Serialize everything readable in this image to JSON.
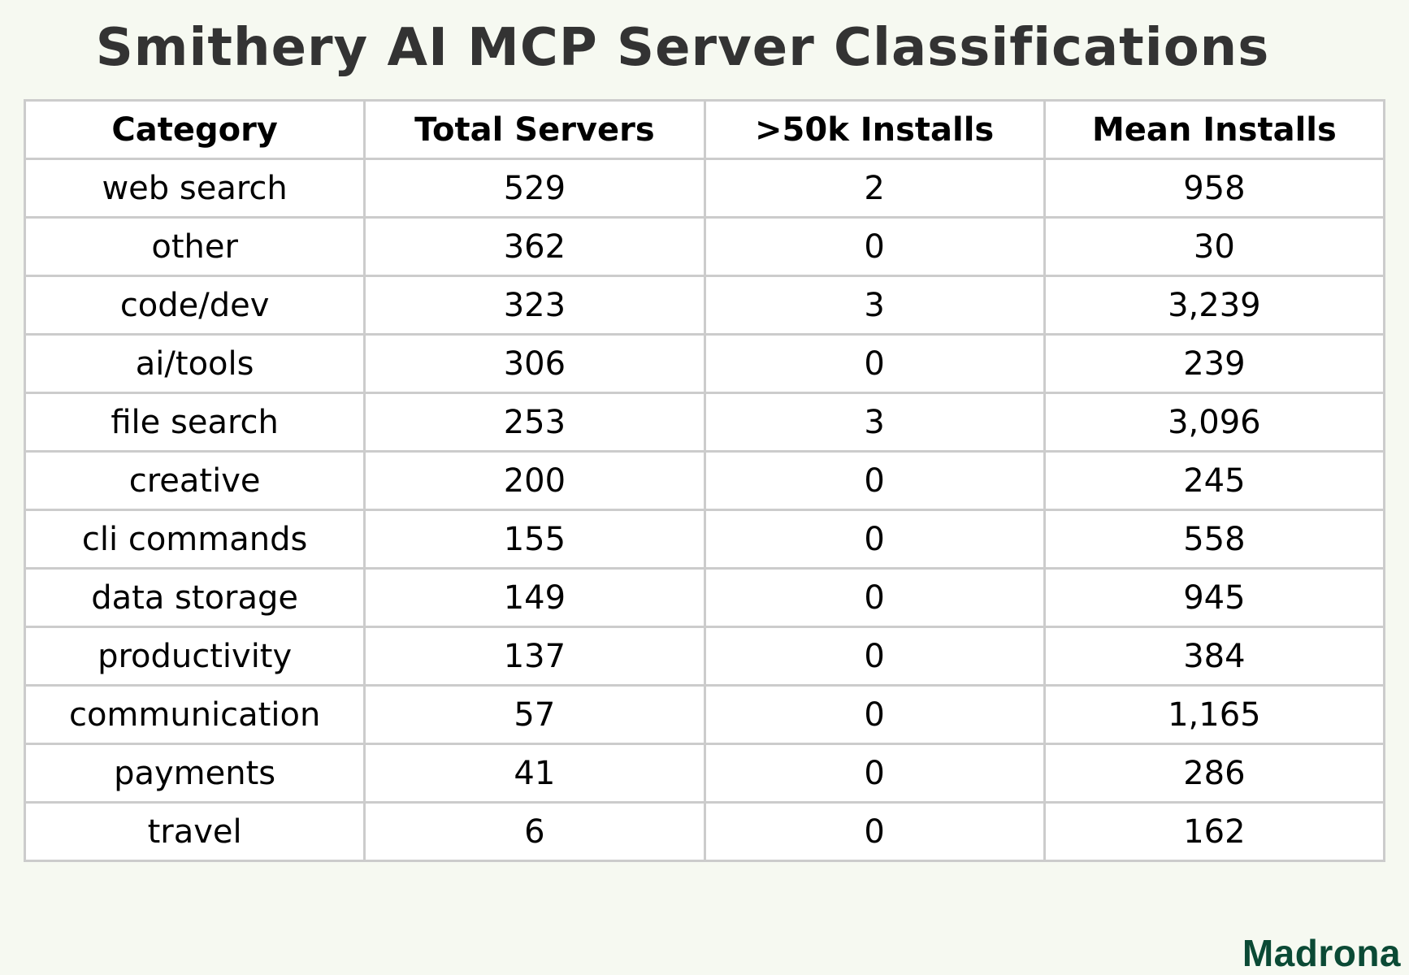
{
  "title": "Smithery AI MCP Server Classifications",
  "table": {
    "headers": [
      "Category",
      "Total Servers",
      ">50k Installs",
      "Mean Installs"
    ],
    "rows": [
      [
        "web search",
        "529",
        "2",
        "958"
      ],
      [
        "other",
        "362",
        "0",
        "30"
      ],
      [
        "code/dev",
        "323",
        "3",
        "3,239"
      ],
      [
        "ai/tools",
        "306",
        "0",
        "239"
      ],
      [
        "file search",
        "253",
        "3",
        "3,096"
      ],
      [
        "creative",
        "200",
        "0",
        "245"
      ],
      [
        "cli commands",
        "155",
        "0",
        "558"
      ],
      [
        "data storage",
        "149",
        "0",
        "945"
      ],
      [
        "productivity",
        "137",
        "0",
        "384"
      ],
      [
        "communication",
        "57",
        "0",
        "1,165"
      ],
      [
        "payments",
        "41",
        "0",
        "286"
      ],
      [
        "travel",
        "6",
        "0",
        "162"
      ]
    ]
  },
  "logo": "Madrona",
  "colors": {
    "background": "#f6f9f1",
    "title": "#333333",
    "border": "#cccccc",
    "logo": "#0b4a35"
  }
}
